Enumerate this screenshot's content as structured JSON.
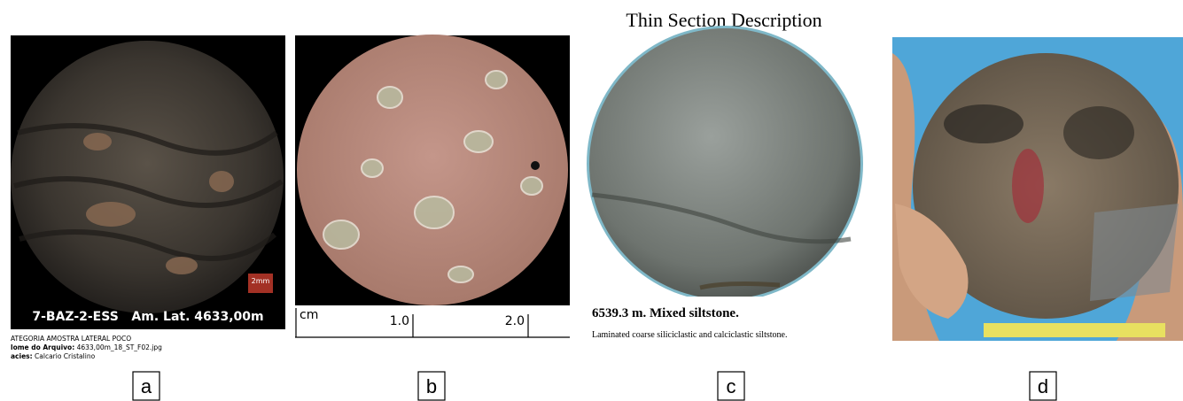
{
  "panels": [
    {
      "letter": "a",
      "image_label": "7-BAZ-2-ESS   Am. Lat. 4633,00m",
      "scale_label": "2mm",
      "caption": {
        "line1": "ATEGORIA AMOSTRA LATERAL POCO",
        "line2_label": "lome do Arquivo:",
        "line2_value": "4633,00m_18_ST_F02.jpg",
        "line3_label": "acies:",
        "line3_value": "Calcario Cristalino"
      }
    },
    {
      "letter": "b",
      "scale": {
        "unit": "cm",
        "tick1": "1.0",
        "tick2": "2.0"
      }
    },
    {
      "letter": "c",
      "title": "Thin Section Description",
      "heading": "6539.3 m. Mixed siltstone.",
      "description": "Laminated coarse siliciclastic and calciclastic siltstone."
    },
    {
      "letter": "d"
    }
  ]
}
